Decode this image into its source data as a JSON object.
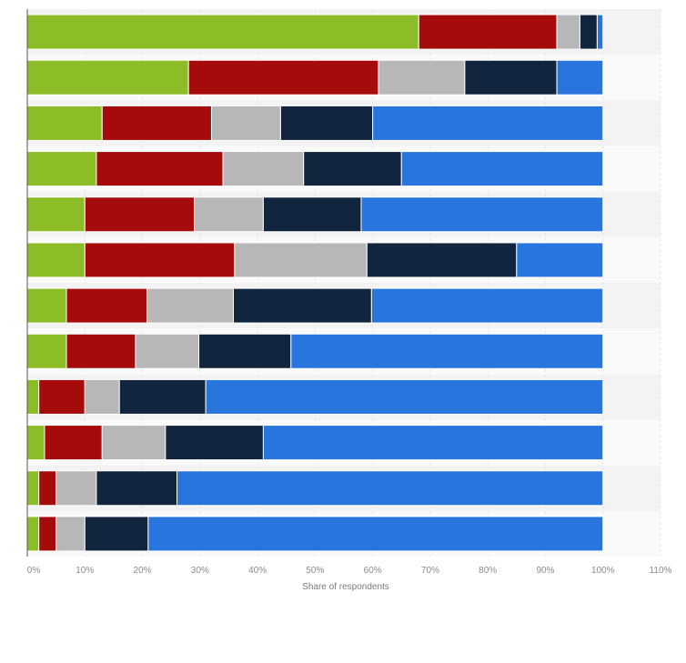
{
  "chart_data": {
    "type": "bar",
    "orientation": "horizontal",
    "stacked": true,
    "title": "",
    "xlabel": "Share of respondents",
    "ylabel": "",
    "xlim": [
      0,
      110
    ],
    "x_ticks": [
      "0%",
      "10%",
      "20%",
      "30%",
      "40%",
      "50%",
      "60%",
      "70%",
      "80%",
      "90%",
      "100%",
      "110%"
    ],
    "categories": [
      "",
      "",
      "",
      "",
      "",
      "",
      "",
      "",
      "",
      "",
      "",
      ""
    ],
    "grid": true,
    "legend": "none",
    "series": [
      {
        "color": "#8cbc26",
        "values": [
          68,
          28,
          13,
          12,
          10,
          10,
          6.8,
          6.8,
          2,
          3,
          2,
          2
        ]
      },
      {
        "color": "#a50b0b",
        "values": [
          24,
          33,
          19,
          22,
          19,
          26,
          14,
          12,
          8,
          10,
          3,
          3
        ]
      },
      {
        "color": "#b7b7b7",
        "values": [
          4,
          15,
          12,
          14,
          12,
          23,
          15,
          11,
          6,
          11,
          7,
          5
        ]
      },
      {
        "color": "#11253f",
        "values": [
          3,
          16,
          16,
          17,
          17,
          26,
          24,
          16,
          15,
          17,
          14,
          11
        ]
      },
      {
        "color": "#2876dd",
        "values": [
          1,
          8,
          40,
          35,
          42,
          15,
          40.2,
          54.2,
          69,
          59,
          74,
          79
        ]
      }
    ]
  }
}
